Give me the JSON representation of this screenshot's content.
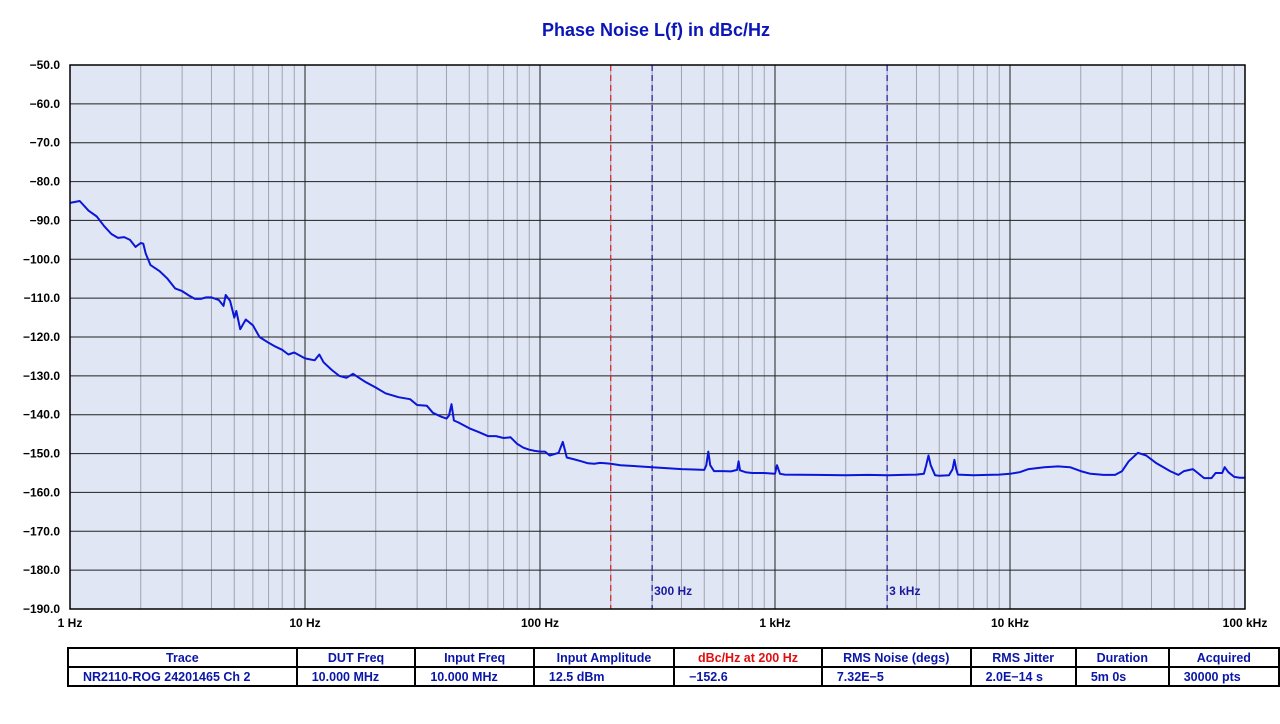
{
  "chart_data": {
    "type": "line",
    "title": "Phase Noise L(f) in dBc/Hz",
    "xscale": "log",
    "xlim": [
      1,
      100000
    ],
    "ylim": [
      -190,
      -50
    ],
    "grid": true,
    "y_ticks": [
      "−50.0",
      "−60.0",
      "−70.0",
      "−80.0",
      "−90.0",
      "−100.0",
      "−110.0",
      "−120.0",
      "−130.0",
      "−140.0",
      "−150.0",
      "−160.0",
      "−170.0",
      "−180.0",
      "−190.0"
    ],
    "x_ticks": [
      "1 Hz",
      "10 Hz",
      "100 Hz",
      "1 kHz",
      "10 kHz",
      "100 kHz"
    ],
    "series": [
      {
        "color": "#0a16d8",
        "points": [
          [
            1,
            -85.5
          ],
          [
            1.1,
            -85
          ],
          [
            1.2,
            -87.5
          ],
          [
            1.3,
            -89
          ],
          [
            1.4,
            -91.5
          ],
          [
            1.5,
            -93.5
          ],
          [
            1.6,
            -94.5
          ],
          [
            1.7,
            -94.3
          ],
          [
            1.8,
            -95
          ],
          [
            1.9,
            -96.8
          ],
          [
            2.0,
            -95.8
          ],
          [
            2.05,
            -96
          ],
          [
            2.1,
            -98.5
          ],
          [
            2.2,
            -101.5
          ],
          [
            2.4,
            -103
          ],
          [
            2.6,
            -105
          ],
          [
            2.8,
            -107.5
          ],
          [
            3.0,
            -108.2
          ],
          [
            3.2,
            -109.3
          ],
          [
            3.4,
            -110.2
          ],
          [
            3.6,
            -110.2
          ],
          [
            3.8,
            -109.8
          ],
          [
            4.0,
            -109.8
          ],
          [
            4.3,
            -110.5
          ],
          [
            4.5,
            -112
          ],
          [
            4.6,
            -109.2
          ],
          [
            4.8,
            -110.7
          ],
          [
            5.0,
            -115
          ],
          [
            5.1,
            -113.3
          ],
          [
            5.3,
            -118
          ],
          [
            5.6,
            -115.5
          ],
          [
            6.0,
            -117
          ],
          [
            6.4,
            -120
          ],
          [
            7.0,
            -121.5
          ],
          [
            7.5,
            -122.5
          ],
          [
            8.0,
            -123.3
          ],
          [
            8.5,
            -124.5
          ],
          [
            9.0,
            -124
          ],
          [
            10,
            -125.5
          ],
          [
            11,
            -126
          ],
          [
            11.5,
            -124.5
          ],
          [
            12,
            -126.5
          ],
          [
            13,
            -128.5
          ],
          [
            14,
            -130
          ],
          [
            15,
            -130.5
          ],
          [
            16,
            -129.5
          ],
          [
            18,
            -131.5
          ],
          [
            20,
            -133
          ],
          [
            22,
            -134.5
          ],
          [
            25,
            -135.5
          ],
          [
            28,
            -136
          ],
          [
            30,
            -137.5
          ],
          [
            33,
            -137.7
          ],
          [
            35,
            -139.5
          ],
          [
            38,
            -140.5
          ],
          [
            40,
            -141
          ],
          [
            41,
            -140.2
          ],
          [
            42,
            -137.3
          ],
          [
            43,
            -141.5
          ],
          [
            45,
            -142
          ],
          [
            50,
            -143.5
          ],
          [
            55,
            -144.5
          ],
          [
            60,
            -145.5
          ],
          [
            65,
            -145.5
          ],
          [
            70,
            -146
          ],
          [
            75,
            -145.8
          ],
          [
            80,
            -147.5
          ],
          [
            85,
            -148.5
          ],
          [
            90,
            -149
          ],
          [
            95,
            -149.3
          ],
          [
            100,
            -149.5
          ],
          [
            105,
            -149.5
          ],
          [
            110,
            -150.5
          ],
          [
            120,
            -149.8
          ],
          [
            125,
            -147
          ],
          [
            130,
            -151
          ],
          [
            140,
            -151.5
          ],
          [
            150,
            -152
          ],
          [
            160,
            -152.5
          ],
          [
            170,
            -152.6
          ],
          [
            180,
            -152.4
          ],
          [
            190,
            -152.5
          ],
          [
            200,
            -152.6
          ],
          [
            220,
            -153
          ],
          [
            250,
            -153.2
          ],
          [
            300,
            -153.5
          ],
          [
            350,
            -153.8
          ],
          [
            400,
            -154
          ],
          [
            450,
            -154.1
          ],
          [
            500,
            -154.2
          ],
          [
            510,
            -153
          ],
          [
            520,
            -149.5
          ],
          [
            530,
            -153
          ],
          [
            550,
            -154.5
          ],
          [
            600,
            -154.5
          ],
          [
            650,
            -154.6
          ],
          [
            690,
            -154.2
          ],
          [
            700,
            -152
          ],
          [
            710,
            -154.3
          ],
          [
            750,
            -154.8
          ],
          [
            800,
            -155
          ],
          [
            900,
            -155
          ],
          [
            1000,
            -155.2
          ],
          [
            1020,
            -153
          ],
          [
            1050,
            -155.2
          ],
          [
            1100,
            -155.4
          ],
          [
            1500,
            -155.5
          ],
          [
            2000,
            -155.6
          ],
          [
            2500,
            -155.5
          ],
          [
            3000,
            -155.6
          ],
          [
            3500,
            -155.5
          ],
          [
            4000,
            -155.4
          ],
          [
            4300,
            -155.2
          ],
          [
            4400,
            -153
          ],
          [
            4500,
            -150.5
          ],
          [
            4600,
            -153
          ],
          [
            4800,
            -155.6
          ],
          [
            5000,
            -155.7
          ],
          [
            5500,
            -155.6
          ],
          [
            5700,
            -154
          ],
          [
            5800,
            -151.6
          ],
          [
            5900,
            -154
          ],
          [
            6000,
            -155.4
          ],
          [
            7000,
            -155.6
          ],
          [
            8000,
            -155.5
          ],
          [
            9000,
            -155.4
          ],
          [
            10000,
            -155.2
          ],
          [
            11000,
            -154.8
          ],
          [
            12000,
            -154
          ],
          [
            14000,
            -153.5
          ],
          [
            16000,
            -153.3
          ],
          [
            18000,
            -153.5
          ],
          [
            20000,
            -154.5
          ],
          [
            22000,
            -155.2
          ],
          [
            25000,
            -155.5
          ],
          [
            28000,
            -155.5
          ],
          [
            30000,
            -154.5
          ],
          [
            32000,
            -152
          ],
          [
            35000,
            -149.8
          ],
          [
            38000,
            -150.5
          ],
          [
            42000,
            -152.5
          ],
          [
            48000,
            -154.5
          ],
          [
            52000,
            -155.5
          ],
          [
            55000,
            -154.5
          ],
          [
            60000,
            -154
          ],
          [
            63000,
            -155
          ],
          [
            67000,
            -156.3
          ],
          [
            72000,
            -156.3
          ],
          [
            75000,
            -155
          ],
          [
            80000,
            -155
          ],
          [
            82000,
            -153.5
          ],
          [
            85000,
            -154.8
          ],
          [
            90000,
            -156
          ],
          [
            95000,
            -156.2
          ],
          [
            100000,
            -156.2
          ]
        ]
      }
    ],
    "markers": [
      {
        "x": 200,
        "color": "#dd2020",
        "label": ""
      },
      {
        "x": 300,
        "color": "#1a1aa0",
        "label": "300 Hz"
      },
      {
        "x": 3000,
        "color": "#1a1aa0",
        "label": "3 kHz"
      }
    ]
  },
  "table": {
    "headers": [
      "Trace",
      "DUT Freq",
      "Input Freq",
      "Input Amplitude",
      "dBc/Hz at 200 Hz",
      "RMS Noise (degs)",
      "RMS Jitter",
      "Duration",
      "Acquired"
    ],
    "highlight_header": "dBc/Hz at 200 Hz",
    "values": [
      "NR2110-ROG 24201465  Ch 2",
      "10.000 MHz",
      "10.000 MHz",
      "12.5 dBm",
      "−152.6",
      "7.32E−5",
      "2.0E−14 s",
      "5m 0s",
      "30000 pts"
    ]
  },
  "colors": {
    "plot_background": "#e1e6f4",
    "trace": "#0a16d8",
    "title": "#0a16b8"
  }
}
